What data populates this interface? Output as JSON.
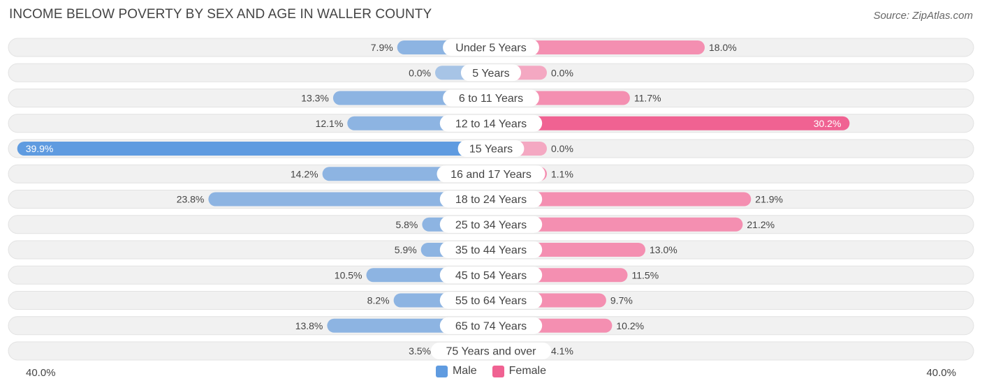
{
  "title": "INCOME BELOW POVERTY BY SEX AND AGE IN WALLER COUNTY",
  "source": "Source: ZipAtlas.com",
  "colors": {
    "male": "#8db4e2",
    "male_strong": "#5f9be0",
    "female": "#f48fb1",
    "female_strong": "#f06292",
    "track": "#f1f1f1"
  },
  "chart_data": {
    "type": "bar",
    "orientation": "horizontal-diverging",
    "title": "INCOME BELOW POVERTY BY SEX AND AGE IN WALLER COUNTY",
    "xlim": [
      -40,
      40
    ],
    "axis_labels": {
      "left": "40.0%",
      "right": "40.0%"
    },
    "legend": [
      "Male",
      "Female"
    ],
    "categories": [
      "Under 5 Years",
      "5 Years",
      "6 to 11 Years",
      "12 to 14 Years",
      "15 Years",
      "16 and 17 Years",
      "18 to 24 Years",
      "25 to 34 Years",
      "35 to 44 Years",
      "45 to 54 Years",
      "55 to 64 Years",
      "65 to 74 Years",
      "75 Years and over"
    ],
    "series": [
      {
        "name": "Male",
        "values": [
          7.9,
          0.0,
          13.3,
          12.1,
          39.9,
          14.2,
          23.8,
          5.8,
          5.9,
          10.5,
          8.2,
          13.8,
          3.5
        ],
        "labels": [
          "7.9%",
          "0.0%",
          "13.3%",
          "12.1%",
          "39.9%",
          "14.2%",
          "23.8%",
          "5.8%",
          "5.9%",
          "10.5%",
          "8.2%",
          "13.8%",
          "3.5%"
        ]
      },
      {
        "name": "Female",
        "values": [
          18.0,
          0.0,
          11.7,
          30.2,
          0.0,
          1.1,
          21.9,
          21.2,
          13.0,
          11.5,
          9.7,
          10.2,
          4.1
        ],
        "labels": [
          "18.0%",
          "0.0%",
          "11.7%",
          "30.2%",
          "0.0%",
          "1.1%",
          "21.9%",
          "21.2%",
          "13.0%",
          "11.5%",
          "9.7%",
          "10.2%",
          "4.1%"
        ]
      }
    ]
  }
}
